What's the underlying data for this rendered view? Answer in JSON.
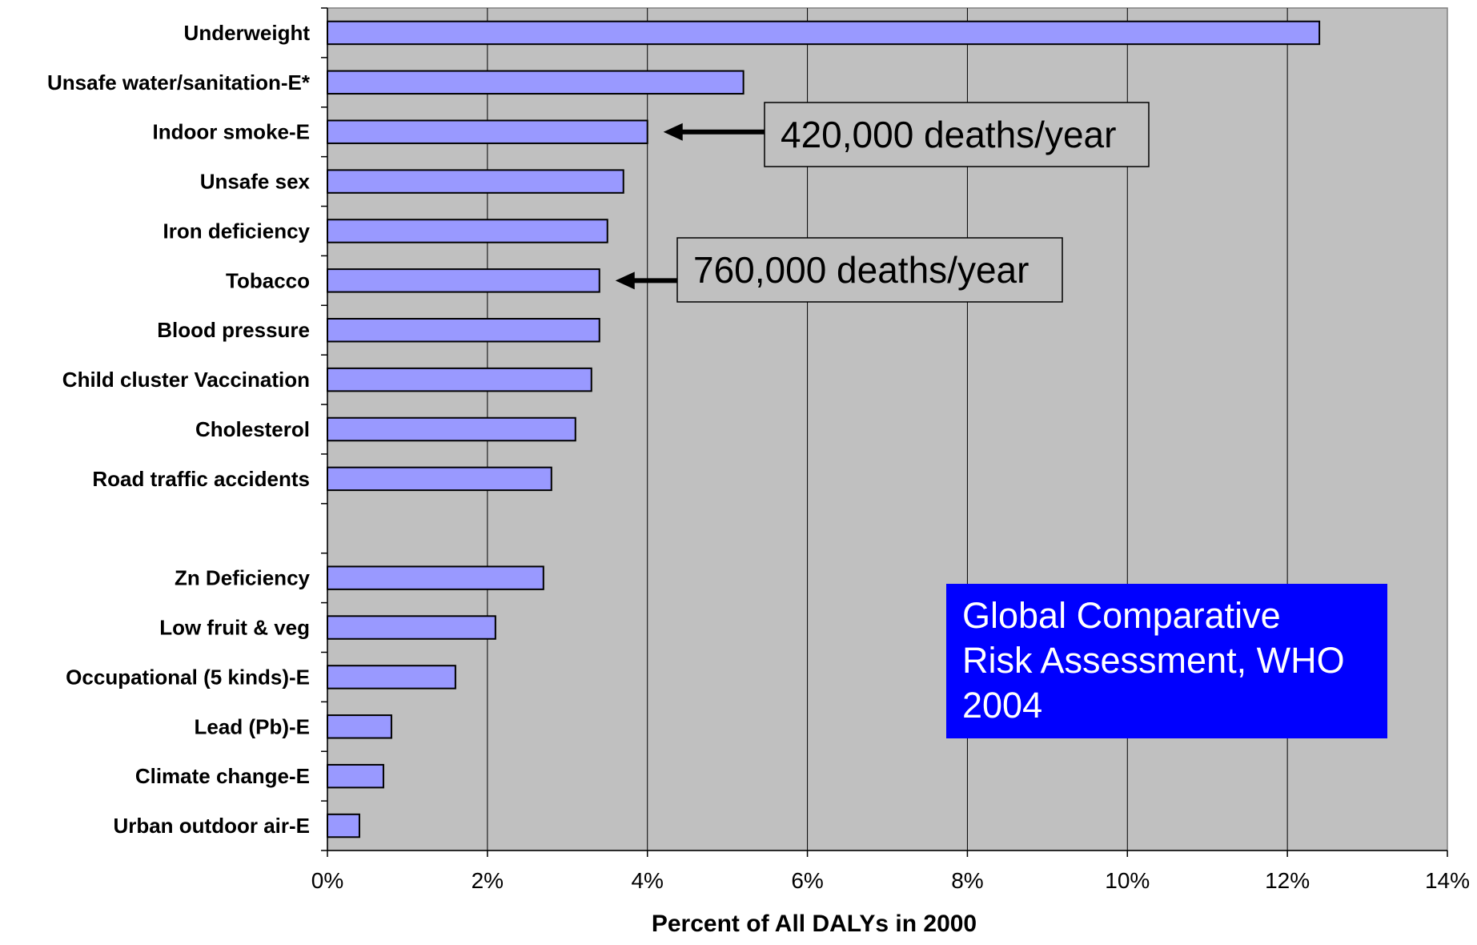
{
  "chart_data": {
    "type": "bar",
    "orientation": "horizontal",
    "categories": [
      "Underweight",
      "Unsafe water/sanitation-E*",
      "Indoor smoke-E",
      "Unsafe sex",
      "Iron deficiency",
      "Tobacco",
      "Blood pressure",
      "Child cluster Vaccination",
      "Cholesterol",
      "Road traffic accidents",
      "",
      "Zn Deficiency",
      "Low fruit & veg",
      "Occupational (5 kinds)-E",
      "Lead (Pb)-E",
      "Climate change-E",
      "Urban outdoor air-E"
    ],
    "values": [
      12.4,
      5.2,
      4.0,
      3.7,
      3.5,
      3.4,
      3.4,
      3.3,
      3.1,
      2.8,
      null,
      2.7,
      2.1,
      1.6,
      0.8,
      0.7,
      0.4
    ],
    "xlabel": "Percent of All DALYs in 2000",
    "ylabel": "",
    "xlim": [
      0,
      14
    ],
    "xticks": [
      "0%",
      "2%",
      "4%",
      "6%",
      "8%",
      "10%",
      "12%",
      "14%"
    ],
    "grid": "vertical",
    "annotations": [
      {
        "text": "420,000 deaths/year",
        "points_to": "Indoor smoke-E"
      },
      {
        "text": "760,000 deaths/year",
        "points_to": "Tobacco"
      }
    ]
  },
  "info_box": {
    "lines": [
      "Global Comparative",
      "Risk Assessment, WHO",
      "2004"
    ]
  },
  "colors": {
    "plot_background": "#c0c0c0",
    "bar_fill": "#9999ff",
    "bar_stroke": "#000000",
    "gridline": "#000000",
    "info_box_background": "#0000ff",
    "info_box_text": "#ffffff",
    "callout_background": "#c0c0c0"
  }
}
